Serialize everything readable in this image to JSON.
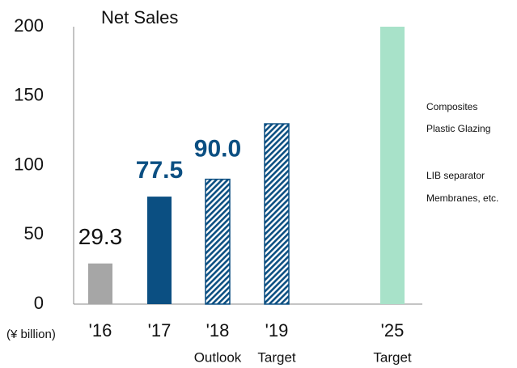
{
  "chart_data": {
    "type": "bar",
    "title": "Net Sales",
    "y_label": "(¥ billion)",
    "categories": [
      "'16",
      "'17",
      "'18",
      "'19",
      "'25"
    ],
    "sublabels": [
      null,
      null,
      "Outlook",
      "Target",
      "Target"
    ],
    "values": [
      29.3,
      77.5,
      90,
      130,
      200
    ],
    "value_labels": [
      "29.3",
      "77.5",
      "90.0",
      null,
      null
    ],
    "colors": [
      "#a6a6a6",
      "#0b4f82",
      "#0b4f82",
      "#0b4f82",
      "#a8e2c9"
    ],
    "hatched": [
      false,
      false,
      true,
      true,
      false
    ],
    "ylim": [
      0,
      200
    ],
    "yticks": [
      0,
      50,
      100,
      150,
      200
    ],
    "grid": false,
    "annotations": [
      "Composites",
      "Plastic Glazing",
      "LIB separator",
      "Membranes, etc."
    ]
  }
}
